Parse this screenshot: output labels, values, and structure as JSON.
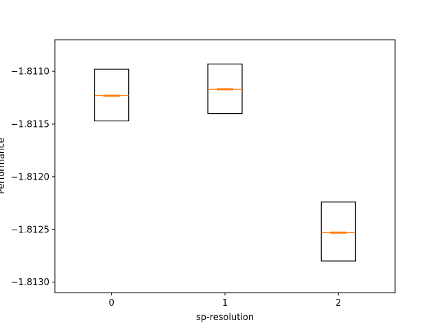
{
  "chart_data": {
    "type": "box",
    "xlabel": "sp-resolution",
    "ylabel": "Performance",
    "categories": [
      "0",
      "1",
      "2"
    ],
    "ylim": [
      -1.8131,
      -1.8107
    ],
    "yticks": [
      -1.811,
      -1.8115,
      -1.812,
      -1.8125,
      -1.813
    ],
    "ytick_labels": [
      "−1.8110",
      "−1.8115",
      "−1.8120",
      "−1.8125",
      "−1.8130"
    ],
    "boxes": [
      {
        "category": "0",
        "q1": -1.81147,
        "median": -1.81123,
        "q3": -1.81098
      },
      {
        "category": "1",
        "q1": -1.8114,
        "median": -1.81117,
        "q3": -1.81093
      },
      {
        "category": "2",
        "q1": -1.8128,
        "median": -1.81253,
        "q3": -1.81224
      }
    ],
    "colors": {
      "box": "#000000",
      "median": "#ff7f0e"
    }
  }
}
